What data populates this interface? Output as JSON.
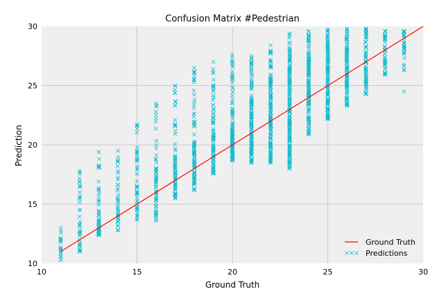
{
  "chart_data": {
    "type": "scatter",
    "title": "Confusion Matrix #Pedestrian",
    "xlabel": "Ground Truth",
    "ylabel": "Prediction",
    "xlim": [
      10,
      30
    ],
    "ylim": [
      10,
      30
    ],
    "xticks": [
      "10",
      "15",
      "20",
      "25",
      "30"
    ],
    "yticks": [
      "10",
      "15",
      "20",
      "25",
      "30"
    ],
    "grid": true,
    "legend": {
      "position": "bottom-right",
      "entries": [
        "Ground Truth",
        "Predictions"
      ]
    },
    "colors": {
      "background": "#efefef",
      "grid": "#c8c8c8",
      "ground_truth": "#ff0000",
      "predictions": "#17becf"
    },
    "series": [
      {
        "name": "Ground Truth",
        "kind": "line",
        "x": [
          11,
          30
        ],
        "y": [
          11,
          30
        ]
      },
      {
        "name": "Predictions",
        "kind": "scatter",
        "marker": "x",
        "x": [
          11,
          12,
          13,
          14,
          15,
          16,
          17,
          18,
          19,
          20,
          21,
          22,
          23,
          24,
          25,
          26,
          27,
          28,
          29
        ],
        "y_range": [
          [
            10.3,
            13.0
          ],
          [
            11.0,
            17.8
          ],
          [
            12.4,
            19.4
          ],
          [
            12.8,
            19.5
          ],
          [
            13.7,
            21.7
          ],
          [
            13.6,
            23.5
          ],
          [
            15.5,
            25.0
          ],
          [
            16.2,
            26.5
          ],
          [
            17.6,
            27.0
          ],
          [
            18.7,
            27.6
          ],
          [
            18.5,
            27.5
          ],
          [
            18.5,
            28.4
          ],
          [
            18.0,
            29.4
          ],
          [
            20.9,
            29.6
          ],
          [
            22.2,
            29.7
          ],
          [
            23.3,
            29.8
          ],
          [
            24.3,
            29.8
          ],
          [
            25.9,
            29.6
          ],
          [
            24.5,
            29.6
          ]
        ],
        "density": [
          20,
          40,
          70,
          45,
          50,
          60,
          75,
          95,
          95,
          120,
          140,
          160,
          190,
          170,
          140,
          110,
          70,
          40,
          35
        ]
      }
    ]
  }
}
